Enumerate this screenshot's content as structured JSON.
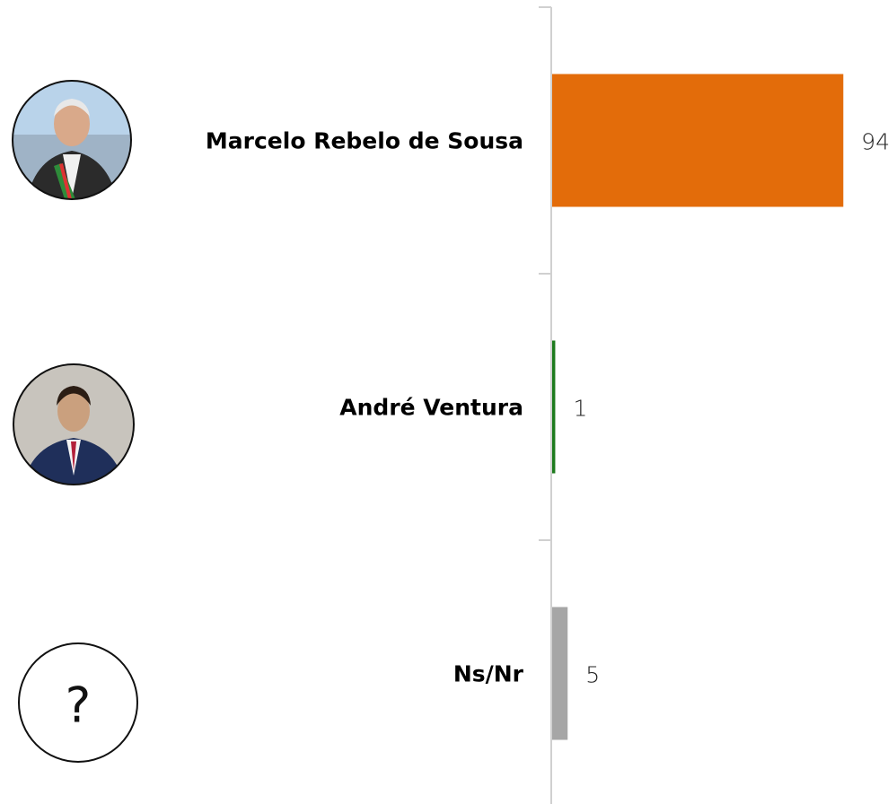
{
  "chart_data": {
    "type": "barh",
    "categories": [
      "Marcelo Rebelo de Sousa",
      "André Ventura",
      "Ns/Nr"
    ],
    "values": [
      94,
      1,
      5
    ],
    "colors": [
      "#e36c0a",
      "#1e7b1e",
      "#a6a6a6"
    ],
    "xlim": [
      0,
      100
    ],
    "unknown_symbol": "?"
  }
}
